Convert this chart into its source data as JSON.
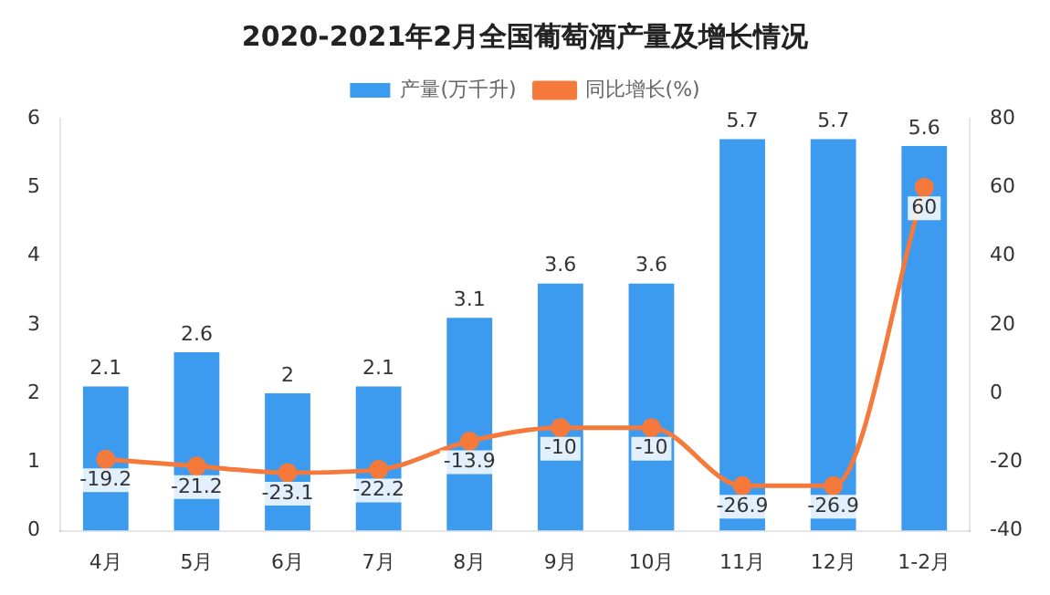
{
  "chart_data": {
    "type": "bar",
    "title": "2020-2021年2月全国葡萄酒产量及增长情况",
    "categories": [
      "4月",
      "5月",
      "6月",
      "7月",
      "8月",
      "9月",
      "10月",
      "11月",
      "12月",
      "1-2月"
    ],
    "series": [
      {
        "name": "产量(万千升)",
        "color": "#3d9bef",
        "values": [
          2.1,
          2.6,
          2,
          2.1,
          3.1,
          3.6,
          3.6,
          5.7,
          5.7,
          5.6
        ]
      },
      {
        "name": "同比增长(%)",
        "type": "line",
        "axis": "y2",
        "color": "#f4793b",
        "marker": "circle",
        "values": [
          -19.2,
          -21.2,
          -23.1,
          -22.2,
          -13.9,
          -10,
          -10,
          -26.9,
          -26.9,
          60
        ]
      }
    ],
    "ylim": [
      0,
      6
    ],
    "yticks": [
      0,
      1,
      2,
      3,
      4,
      5,
      6
    ],
    "y2lim": [
      -40,
      80
    ],
    "y2ticks": [
      -40,
      -20,
      0,
      20,
      40,
      60,
      80
    ],
    "data_labels": true,
    "legend": "top",
    "grid": false
  }
}
